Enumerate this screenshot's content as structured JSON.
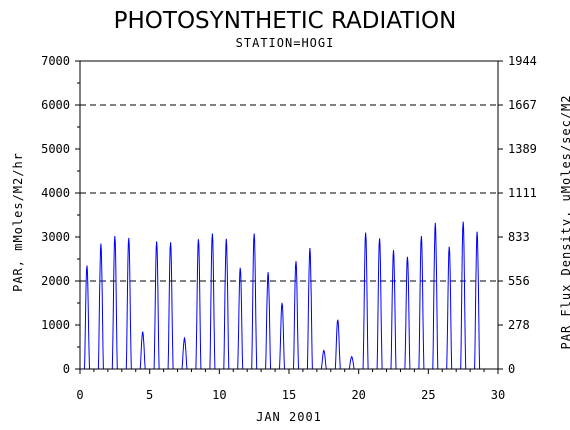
{
  "chart_data": {
    "type": "line",
    "title": "PHOTOSYNTHETIC RADIATION",
    "subtitle": "STATION=HOGI",
    "xlabel": "JAN 2001",
    "ylabel": "PAR, mMoles/M2/hr",
    "y2label": "PAR Flux Density, uMoles/sec/M2",
    "xlim": [
      0,
      30
    ],
    "ylim": [
      0,
      7000
    ],
    "x_ticks": [
      "0",
      "5",
      "10",
      "15",
      "20",
      "25",
      "30"
    ],
    "y_ticks": [
      "0",
      "1000",
      "2000",
      "3000",
      "4000",
      "5000",
      "6000",
      "7000"
    ],
    "y2_ticks": [
      "0",
      "278",
      "556",
      "833",
      "1111",
      "1389",
      "1667",
      "1944"
    ],
    "gridlines_y": [
      2000,
      4000,
      6000
    ],
    "grid": "dashed horizontal at 2000, 4000, 6000",
    "line_color": "#0000ff",
    "series": [
      {
        "values_note": "daily peak PAR (mMoles/M2/hr) for each day starting at x = day-1",
        "daily_peaks": [
          {
            "day": 1,
            "peak": 2350
          },
          {
            "day": 2,
            "peak": 2850
          },
          {
            "day": 3,
            "peak": 3020
          },
          {
            "day": 4,
            "peak": 2980
          },
          {
            "day": 5,
            "peak": 850
          },
          {
            "day": 6,
            "peak": 2900
          },
          {
            "day": 7,
            "peak": 2880
          },
          {
            "day": 8,
            "peak": 700
          },
          {
            "day": 9,
            "peak": 2950
          },
          {
            "day": 10,
            "peak": 3080
          },
          {
            "day": 11,
            "peak": 2960
          },
          {
            "day": 12,
            "peak": 2300
          },
          {
            "day": 13,
            "peak": 3080
          },
          {
            "day": 14,
            "peak": 2200
          },
          {
            "day": 15,
            "peak": 1500
          },
          {
            "day": 16,
            "peak": 2450
          },
          {
            "day": 17,
            "peak": 2750
          },
          {
            "day": 18,
            "peak": 420
          },
          {
            "day": 19,
            "peak": 1120
          },
          {
            "day": 20,
            "peak": 280
          },
          {
            "day": 21,
            "peak": 3100
          },
          {
            "day": 22,
            "peak": 2970
          },
          {
            "day": 23,
            "peak": 2700
          },
          {
            "day": 24,
            "peak": 2550
          },
          {
            "day": 25,
            "peak": 3020
          },
          {
            "day": 26,
            "peak": 3320
          },
          {
            "day": 27,
            "peak": 2780
          },
          {
            "day": 28,
            "peak": 3350
          },
          {
            "day": 29,
            "peak": 3120
          }
        ]
      }
    ]
  }
}
